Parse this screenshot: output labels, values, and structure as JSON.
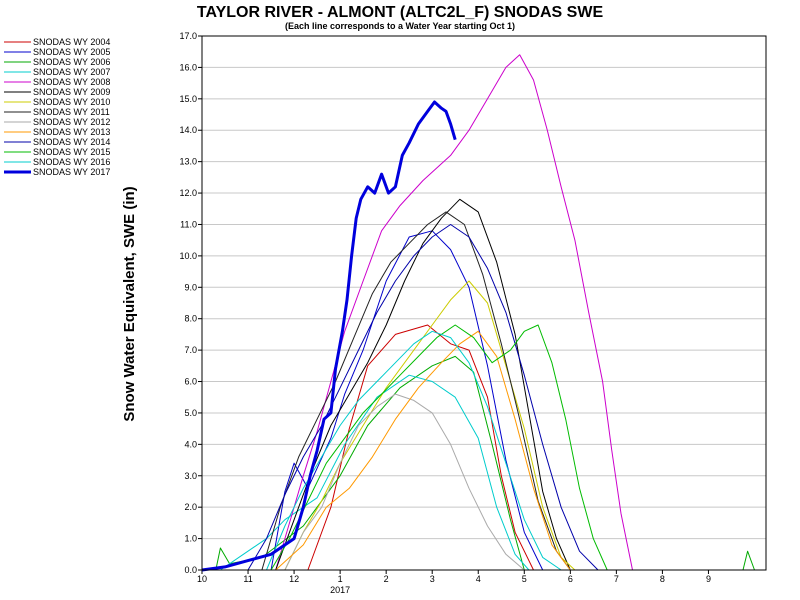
{
  "chart_data": {
    "type": "line",
    "title": "TAYLOR RIVER - ALMONT (ALTC2L_F) SNODAS SWE",
    "subtitle": "(Each line corresponds to a Water Year starting Oct 1)",
    "ylabel": "Snow Water Equivalent, SWE (in)",
    "xlabel": "",
    "ylim": [
      0,
      17
    ],
    "yticks": [
      "0.0",
      "1.0",
      "2.0",
      "3.0",
      "4.0",
      "5.0",
      "6.0",
      "7.0",
      "8.0",
      "9.0",
      "10.0",
      "11.0",
      "12.0",
      "13.0",
      "14.0",
      "15.0",
      "16.0",
      "17.0"
    ],
    "xlim": [
      0,
      12.25
    ],
    "xunit": "months since Oct 1",
    "xticks": [
      {
        "x": 0,
        "label": "10"
      },
      {
        "x": 1,
        "label": "11"
      },
      {
        "x": 2,
        "label": "12"
      },
      {
        "x": 3,
        "label": "1"
      },
      {
        "x": 4,
        "label": "2"
      },
      {
        "x": 5,
        "label": "3"
      },
      {
        "x": 6,
        "label": "4"
      },
      {
        "x": 7,
        "label": "5"
      },
      {
        "x": 8,
        "label": "6"
      },
      {
        "x": 9,
        "label": "7"
      },
      {
        "x": 10,
        "label": "8"
      },
      {
        "x": 11,
        "label": "9"
      }
    ],
    "year_label": {
      "x": 3,
      "label": "2017"
    },
    "grid": true,
    "legend_position": "left",
    "series": [
      {
        "name": "SNODAS WY 2004",
        "color": "#cc0000",
        "width": 1,
        "points": [
          [
            2.3,
            0
          ],
          [
            2.8,
            2
          ],
          [
            3.2,
            4.5
          ],
          [
            3.6,
            6.5
          ],
          [
            4.2,
            7.5
          ],
          [
            4.9,
            7.8
          ],
          [
            5.4,
            7.2
          ],
          [
            5.8,
            7
          ],
          [
            6.2,
            5.5
          ],
          [
            6.5,
            3
          ],
          [
            6.8,
            1.2
          ],
          [
            7.2,
            0
          ]
        ]
      },
      {
        "name": "SNODAS WY 2005",
        "color": "#0000cc",
        "width": 1,
        "points": [
          [
            1.5,
            0
          ],
          [
            1.8,
            2.5
          ],
          [
            2.0,
            3.4
          ],
          [
            2.3,
            2.6
          ],
          [
            2.8,
            4.2
          ],
          [
            3.1,
            5.6
          ],
          [
            3.5,
            7.0
          ],
          [
            4.0,
            9.2
          ],
          [
            4.5,
            10.6
          ],
          [
            5.0,
            10.8
          ],
          [
            5.4,
            10.2
          ],
          [
            5.8,
            9.0
          ],
          [
            6.2,
            6.5
          ],
          [
            6.6,
            3.5
          ],
          [
            7.0,
            1.2
          ],
          [
            7.4,
            0
          ]
        ]
      },
      {
        "name": "SNODAS WY 2006",
        "color": "#00aa00",
        "width": 1,
        "points": [
          [
            0.3,
            0
          ],
          [
            0.4,
            0.7
          ],
          [
            0.6,
            0.2
          ],
          [
            1.3,
            0.4
          ],
          [
            2.2,
            1.4
          ],
          [
            3.0,
            3.0
          ],
          [
            3.6,
            4.6
          ],
          [
            4.3,
            5.8
          ],
          [
            5.0,
            6.5
          ],
          [
            5.5,
            6.8
          ],
          [
            5.9,
            6.3
          ],
          [
            6.3,
            4.0
          ],
          [
            6.7,
            1.6
          ],
          [
            7.0,
            0
          ],
          [
            11.75,
            0
          ],
          [
            11.85,
            0.6
          ],
          [
            12.0,
            0
          ]
        ]
      },
      {
        "name": "SNODAS WY 2007",
        "color": "#00cccc",
        "width": 1,
        "points": [
          [
            0.4,
            0
          ],
          [
            0.8,
            0.4
          ],
          [
            1.4,
            1.0
          ],
          [
            1.8,
            1.6
          ],
          [
            2.5,
            2.3
          ],
          [
            3.1,
            4.0
          ],
          [
            3.8,
            5.5
          ],
          [
            4.5,
            6.2
          ],
          [
            5.0,
            6.0
          ],
          [
            5.5,
            5.5
          ],
          [
            6.0,
            4.2
          ],
          [
            6.4,
            2.0
          ],
          [
            6.8,
            0.5
          ],
          [
            7.1,
            0
          ]
        ]
      },
      {
        "name": "SNODAS WY 2008",
        "color": "#cc00cc",
        "width": 1,
        "points": [
          [
            1.6,
            0
          ],
          [
            1.9,
            1.5
          ],
          [
            2.2,
            3.0
          ],
          [
            2.5,
            4.4
          ],
          [
            2.8,
            6.0
          ],
          [
            3.1,
            7.6
          ],
          [
            3.5,
            9.2
          ],
          [
            3.9,
            10.8
          ],
          [
            4.3,
            11.6
          ],
          [
            4.8,
            12.4
          ],
          [
            5.4,
            13.2
          ],
          [
            5.8,
            14.0
          ],
          [
            6.2,
            15.0
          ],
          [
            6.6,
            16.0
          ],
          [
            6.9,
            16.4
          ],
          [
            7.2,
            15.6
          ],
          [
            7.5,
            14.0
          ],
          [
            7.8,
            12.2
          ],
          [
            8.1,
            10.5
          ],
          [
            8.4,
            8.2
          ],
          [
            8.7,
            6.0
          ],
          [
            8.9,
            3.8
          ],
          [
            9.1,
            1.8
          ],
          [
            9.35,
            0
          ]
        ]
      },
      {
        "name": "SNODAS WY 2009",
        "color": "#000000",
        "width": 1,
        "points": [
          [
            1.6,
            0
          ],
          [
            2.0,
            1.6
          ],
          [
            2.4,
            3.2
          ],
          [
            2.8,
            4.6
          ],
          [
            3.2,
            5.6
          ],
          [
            3.6,
            6.6
          ],
          [
            4.0,
            7.8
          ],
          [
            4.4,
            9.2
          ],
          [
            4.8,
            10.4
          ],
          [
            5.2,
            11.2
          ],
          [
            5.6,
            11.8
          ],
          [
            6.0,
            11.4
          ],
          [
            6.4,
            9.8
          ],
          [
            6.8,
            7.5
          ],
          [
            7.1,
            5.0
          ],
          [
            7.4,
            2.5
          ],
          [
            7.7,
            1.0
          ],
          [
            8.0,
            0
          ]
        ]
      },
      {
        "name": "SNODAS WY 2010",
        "color": "#cccc00",
        "width": 1,
        "points": [
          [
            1.8,
            0
          ],
          [
            2.2,
            1.2
          ],
          [
            2.6,
            2.2
          ],
          [
            3.0,
            3.4
          ],
          [
            3.5,
            4.6
          ],
          [
            4.0,
            5.8
          ],
          [
            4.5,
            6.8
          ],
          [
            5.0,
            7.8
          ],
          [
            5.4,
            8.6
          ],
          [
            5.8,
            9.2
          ],
          [
            6.2,
            8.5
          ],
          [
            6.6,
            6.5
          ],
          [
            7.0,
            4.5
          ],
          [
            7.4,
            2.0
          ],
          [
            7.8,
            0.4
          ],
          [
            8.1,
            0
          ]
        ]
      },
      {
        "name": "SNODAS WY 2011",
        "color": "#222222",
        "width": 1,
        "points": [
          [
            1.3,
            0
          ],
          [
            1.7,
            2.0
          ],
          [
            2.1,
            3.6
          ],
          [
            2.5,
            4.8
          ],
          [
            2.9,
            6.0
          ],
          [
            3.3,
            7.4
          ],
          [
            3.7,
            8.8
          ],
          [
            4.1,
            9.8
          ],
          [
            4.5,
            10.4
          ],
          [
            4.9,
            11.0
          ],
          [
            5.3,
            11.4
          ],
          [
            5.7,
            11.0
          ],
          [
            6.1,
            9.4
          ],
          [
            6.5,
            7.2
          ],
          [
            6.9,
            4.8
          ],
          [
            7.3,
            2.2
          ],
          [
            7.7,
            0.6
          ],
          [
            8.0,
            0
          ]
        ]
      },
      {
        "name": "SNODAS WY 2012",
        "color": "#aaaaaa",
        "width": 1,
        "points": [
          [
            1.8,
            0
          ],
          [
            2.2,
            1.2
          ],
          [
            2.6,
            2.0
          ],
          [
            3.0,
            3.4
          ],
          [
            3.4,
            4.6
          ],
          [
            3.8,
            5.2
          ],
          [
            4.2,
            5.6
          ],
          [
            4.6,
            5.4
          ],
          [
            5.0,
            5.0
          ],
          [
            5.4,
            4.0
          ],
          [
            5.8,
            2.6
          ],
          [
            6.2,
            1.4
          ],
          [
            6.6,
            0.5
          ],
          [
            7.0,
            0
          ]
        ]
      },
      {
        "name": "SNODAS WY 2013",
        "color": "#ff9900",
        "width": 1,
        "points": [
          [
            1.6,
            0
          ],
          [
            2.2,
            0.8
          ],
          [
            2.7,
            2.0
          ],
          [
            3.2,
            2.6
          ],
          [
            3.7,
            3.6
          ],
          [
            4.2,
            4.8
          ],
          [
            4.7,
            5.8
          ],
          [
            5.2,
            6.6
          ],
          [
            5.6,
            7.2
          ],
          [
            6.0,
            7.6
          ],
          [
            6.4,
            6.8
          ],
          [
            6.8,
            4.8
          ],
          [
            7.2,
            2.6
          ],
          [
            7.6,
            0.8
          ],
          [
            8.0,
            0
          ]
        ]
      },
      {
        "name": "SNODAS WY 2014",
        "color": "#0000aa",
        "width": 1,
        "points": [
          [
            1.0,
            0
          ],
          [
            1.4,
            1.0
          ],
          [
            1.8,
            2.4
          ],
          [
            2.2,
            3.6
          ],
          [
            2.6,
            4.6
          ],
          [
            3.0,
            5.8
          ],
          [
            3.4,
            7.0
          ],
          [
            3.8,
            8.2
          ],
          [
            4.2,
            9.2
          ],
          [
            4.6,
            10.0
          ],
          [
            5.0,
            10.6
          ],
          [
            5.4,
            11.0
          ],
          [
            5.8,
            10.6
          ],
          [
            6.2,
            9.6
          ],
          [
            6.6,
            8.2
          ],
          [
            7.0,
            6.2
          ],
          [
            7.4,
            4.0
          ],
          [
            7.8,
            2.0
          ],
          [
            8.2,
            0.6
          ],
          [
            8.6,
            0
          ]
        ]
      },
      {
        "name": "SNODAS WY 2015",
        "color": "#00bb00",
        "width": 1,
        "points": [
          [
            1.5,
            0
          ],
          [
            1.9,
            1.0
          ],
          [
            2.3,
            2.2
          ],
          [
            2.7,
            3.4
          ],
          [
            3.1,
            4.2
          ],
          [
            3.5,
            5.0
          ],
          [
            3.9,
            5.6
          ],
          [
            4.3,
            6.2
          ],
          [
            4.7,
            6.8
          ],
          [
            5.1,
            7.4
          ],
          [
            5.5,
            7.8
          ],
          [
            5.9,
            7.4
          ],
          [
            6.3,
            6.6
          ],
          [
            6.7,
            7.0
          ],
          [
            7.0,
            7.6
          ],
          [
            7.3,
            7.8
          ],
          [
            7.6,
            6.6
          ],
          [
            7.9,
            4.8
          ],
          [
            8.2,
            2.6
          ],
          [
            8.5,
            1.0
          ],
          [
            8.8,
            0
          ]
        ]
      },
      {
        "name": "SNODAS WY 2016",
        "color": "#00cccc",
        "width": 1,
        "points": [
          [
            1.4,
            0
          ],
          [
            1.8,
            1.4
          ],
          [
            2.2,
            2.6
          ],
          [
            2.6,
            3.6
          ],
          [
            3.0,
            4.6
          ],
          [
            3.4,
            5.4
          ],
          [
            3.8,
            6.0
          ],
          [
            4.2,
            6.6
          ],
          [
            4.6,
            7.2
          ],
          [
            5.0,
            7.6
          ],
          [
            5.4,
            7.4
          ],
          [
            5.8,
            6.6
          ],
          [
            6.2,
            5.2
          ],
          [
            6.6,
            3.4
          ],
          [
            7.0,
            1.6
          ],
          [
            7.4,
            0.4
          ],
          [
            7.8,
            0
          ]
        ]
      },
      {
        "name": "SNODAS WY 2017",
        "color": "#0000dd",
        "width": 3,
        "points": [
          [
            0,
            0
          ],
          [
            0.5,
            0.1
          ],
          [
            1.0,
            0.3
          ],
          [
            1.5,
            0.5
          ],
          [
            2.0,
            1.0
          ],
          [
            2.2,
            2.0
          ],
          [
            2.35,
            3.0
          ],
          [
            2.5,
            3.8
          ],
          [
            2.65,
            4.8
          ],
          [
            2.8,
            5.0
          ],
          [
            2.9,
            6.4
          ],
          [
            3.05,
            7.6
          ],
          [
            3.15,
            8.6
          ],
          [
            3.25,
            10.0
          ],
          [
            3.35,
            11.2
          ],
          [
            3.45,
            11.8
          ],
          [
            3.6,
            12.2
          ],
          [
            3.75,
            12.0
          ],
          [
            3.9,
            12.6
          ],
          [
            4.05,
            12.0
          ],
          [
            4.2,
            12.2
          ],
          [
            4.35,
            13.2
          ],
          [
            4.5,
            13.6
          ],
          [
            4.7,
            14.2
          ],
          [
            4.9,
            14.6
          ],
          [
            5.05,
            14.9
          ],
          [
            5.2,
            14.7
          ],
          [
            5.3,
            14.6
          ],
          [
            5.4,
            14.2
          ],
          [
            5.5,
            13.7
          ]
        ]
      }
    ]
  }
}
